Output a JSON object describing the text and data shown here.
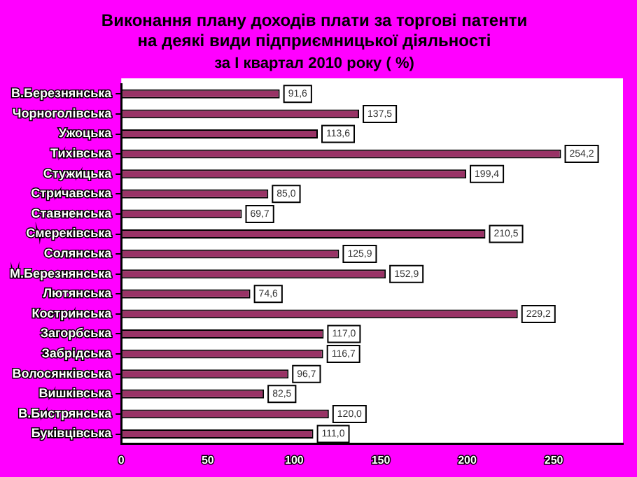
{
  "chart_data": {
    "type": "bar",
    "orientation": "horizontal",
    "title": "Виконання плану доходів плати за торгові патенти\nна деякі види підприємницької діяльності",
    "subtitle": "за І квартал 2010 року ( %)",
    "categories": [
      "В.Березнянська",
      "Чорноголівська",
      "Ужоцька",
      "Тихівська",
      "Стужицька",
      "Стричавська",
      "Ставненська",
      "Смереківська",
      "Солянська",
      "М.Березнянська",
      "Лютянська",
      "Костринська",
      "Загорбська",
      "Забрідська",
      "Волосянківська",
      "Вишківська",
      "В.Бистрянська",
      "Буківцівська"
    ],
    "values": [
      91.6,
      137.5,
      113.6,
      254.2,
      199.4,
      85.0,
      69.7,
      210.5,
      125.9,
      152.9,
      74.6,
      229.2,
      117.0,
      116.7,
      96.7,
      82.5,
      120.0,
      111.0
    ],
    "value_labels": [
      "91,6",
      "137,5",
      "113,6",
      "254,2",
      "199,4",
      "85,0",
      "69,7",
      "210,5",
      "125,9",
      "152,9",
      "74,6",
      "229,2",
      "117,0",
      "116,7",
      "96,7",
      "82,5",
      "120,0",
      "111,0"
    ],
    "color": "#993366",
    "xlim": [
      0,
      290
    ],
    "xticks": [
      0,
      50,
      100,
      150,
      200,
      250
    ],
    "grid": false,
    "legend": false
  }
}
